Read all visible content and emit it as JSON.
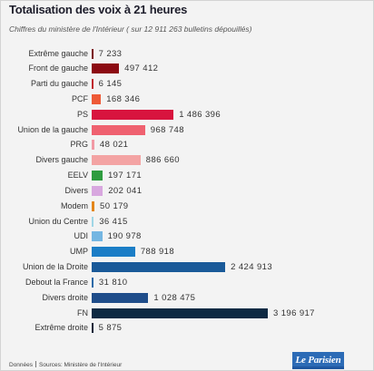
{
  "chart_data": {
    "type": "bar",
    "orientation": "horizontal",
    "title": "Totalisation des voix à 21 heures",
    "subtitle": "Chiffres du ministère de l'Intérieur ( sur 12 911 263 bulletins dépouillés)",
    "categories": [
      "Extrême gauche",
      "Front de gauche",
      "Parti du gauche",
      "PCF",
      "PS",
      "Union de la gauche",
      "PRG",
      "Divers gauche",
      "EELV",
      "Divers",
      "Modem",
      "Union du Centre",
      "UDI",
      "UMP",
      "Union de la Droite",
      "Debout la France",
      "Divers droite",
      "FN",
      "Extrême droite"
    ],
    "values": [
      7233,
      497412,
      6145,
      168346,
      1486396,
      968748,
      48021,
      886660,
      197171,
      202041,
      50179,
      36415,
      190978,
      788918,
      2424913,
      31810,
      1028475,
      3196917,
      5875
    ],
    "data_labels": [
      "7 233",
      "497 412",
      "6 145",
      "168 346",
      "1 486 396",
      "968 748",
      "48 021",
      "886 660",
      "197 171",
      "202 041",
      "50 179",
      "36 415",
      "190 978",
      "788 918",
      "2 424 913",
      "31 810",
      "1 028 475",
      "3 196 917",
      "5 875"
    ],
    "colors": [
      "#7a0b12",
      "#8c0a12",
      "#c0282e",
      "#ee5a37",
      "#d8143e",
      "#ef6170",
      "#f19aa5",
      "#f3a3a3",
      "#2e9c3f",
      "#d8a7df",
      "#e3861a",
      "#9fd6e6",
      "#74b6e2",
      "#1b7ec6",
      "#1a5a99",
      "#2b6aa8",
      "#1f4d8a",
      "#0e2a43",
      "#122439"
    ],
    "grid": false
  },
  "footer": {
    "label": "Données",
    "source": "Sources: Ministère de l'Intérieur"
  },
  "logo": {
    "text": "Le Parisien",
    "color": "#2c6bb6"
  }
}
